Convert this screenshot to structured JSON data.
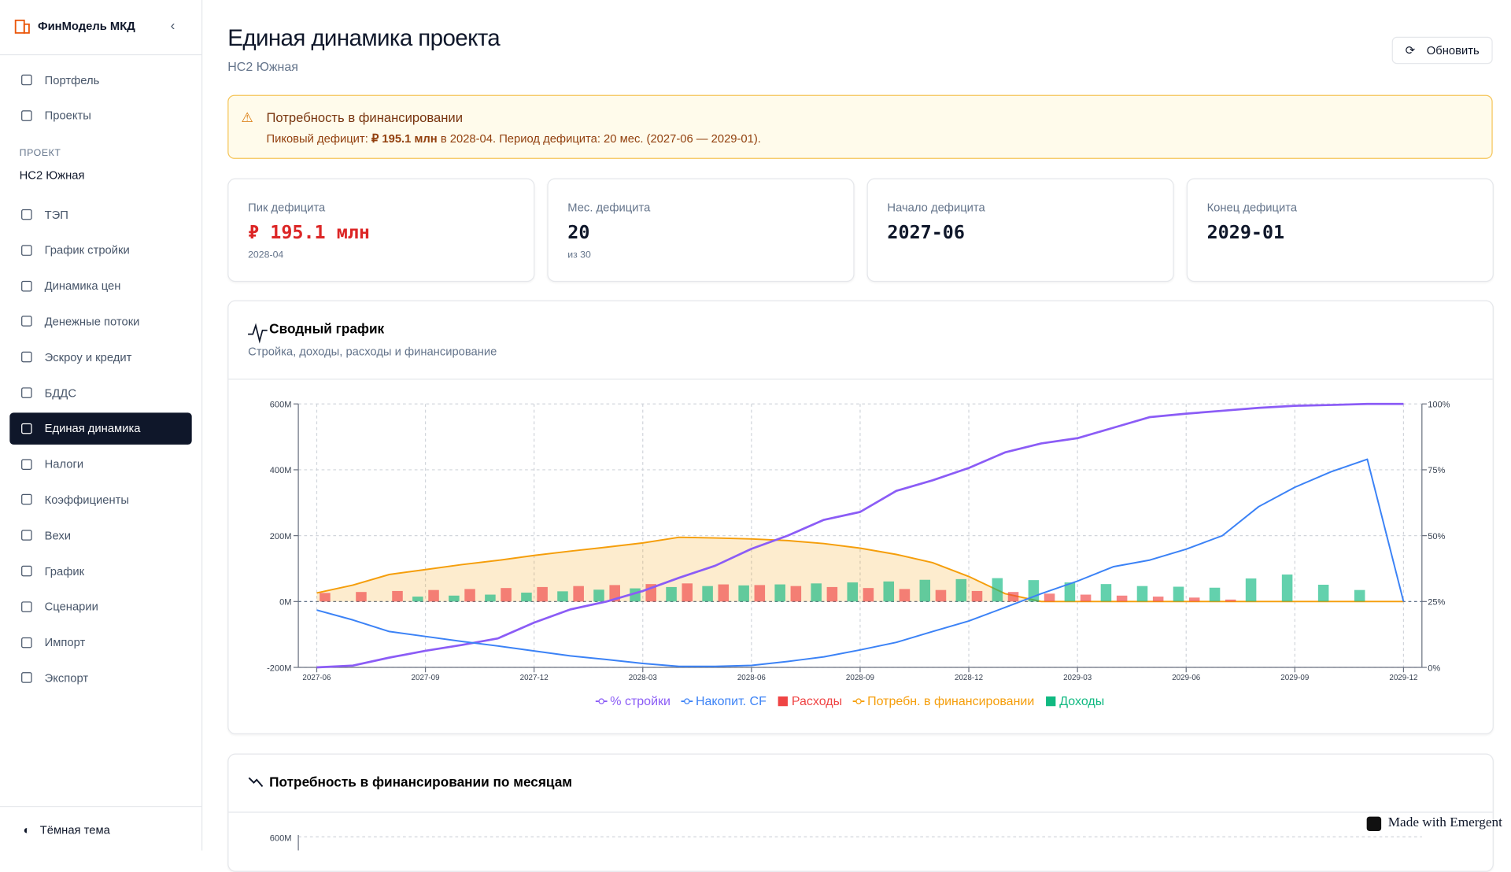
{
  "sidebar": {
    "brand": "ФинМодель МКД",
    "nav_top": [
      "Портфель",
      "Проекты"
    ],
    "section_label": "ПРОЕКТ",
    "project": "НС2 Южная",
    "nav": [
      "ТЭП",
      "График стройки",
      "Динамика цен",
      "Денежные потоки",
      "Эскроу и кредит",
      "БДДС",
      "Единая динамика",
      "Налоги",
      "Коэффициенты",
      "Вехи",
      "График",
      "Сценарии",
      "Импорт",
      "Экспорт"
    ],
    "active_index": 6,
    "theme_toggle": "Тёмная тема"
  },
  "header": {
    "title": "Единая динамика проекта",
    "subtitle": "НС2 Южная",
    "button": "Обновить"
  },
  "alert": {
    "title": "Потребность в финансировании",
    "prefix": "Пиковый дефицит: ",
    "peak": "₽ 195.1 млн",
    "suffix": " в 2028-04. Период дефицита: 20 мес. (2027-06 — 2029-01)."
  },
  "stats": [
    {
      "label": "Пик дефицита",
      "value": "₽ 195.1 млн",
      "sub": "2028-04",
      "accent": true
    },
    {
      "label": "Мес. дефицита",
      "value": 20,
      "sub": "из 30"
    },
    {
      "label": "Начало дефицита",
      "value": "2027-06"
    },
    {
      "label": "Конец дефицита",
      "value": "2029-01"
    }
  ],
  "chart_data": [
    {
      "type": "combo",
      "title": "Сводный график",
      "subtitle": "Стройка, доходы, расходы и финансирование",
      "categories": [
        "2027-06",
        null,
        null,
        "2027-09",
        null,
        null,
        "2027-12",
        null,
        null,
        "2028-03",
        null,
        null,
        "2028-06",
        null,
        null,
        "2028-09",
        null,
        null,
        "2028-12",
        null,
        null,
        "2029-03",
        null,
        null,
        "2029-06",
        null,
        null,
        "2029-09",
        null,
        null,
        "2029-12"
      ],
      "ylim": [
        -200,
        600
      ],
      "yticks": [
        {
          "value": -200,
          "label": "-200M"
        },
        {
          "value": 0,
          "label": "0M"
        },
        {
          "value": 200,
          "label": "200M"
        },
        {
          "value": 400,
          "label": "400M"
        },
        {
          "value": 600,
          "label": "600M"
        }
      ],
      "y2lim": [
        0,
        100
      ],
      "y2ticks": [
        {
          "value": 0,
          "label": "0%"
        },
        {
          "value": 25,
          "label": "25%"
        },
        {
          "value": 50,
          "label": "50%"
        },
        {
          "value": 75,
          "label": "75%"
        },
        {
          "value": 100,
          "label": "100%"
        }
      ],
      "grid": true,
      "series": [
        {
          "name": "% стройки",
          "kind": "line",
          "axis": "y2",
          "color": "#8b5cf6",
          "values": [
            0,
            0.7,
            3.7,
            6.3,
            8.5,
            11,
            17,
            22,
            25,
            29,
            34,
            38.6,
            45,
            50,
            56,
            59,
            67,
            71,
            75.7,
            81.6,
            85,
            87,
            91,
            95,
            96.3,
            97.4,
            98.5,
            99.3,
            99.6,
            100,
            100
          ]
        },
        {
          "name": "Накопит. CF",
          "kind": "line",
          "color": "#3b82f6",
          "values": [
            -26,
            -56,
            -91,
            -106,
            -121,
            -135,
            -150,
            -165,
            -176,
            -188,
            -197,
            -197,
            -194,
            -182,
            -168,
            -147,
            -124,
            -91,
            -59,
            -18,
            24,
            62,
            106,
            126,
            159,
            200,
            288,
            347,
            394,
            432,
            0
          ]
        },
        {
          "name": "Расходы",
          "kind": "bar",
          "color": "#ef4444",
          "values": [
            26,
            29,
            32,
            35,
            38,
            41,
            44,
            47,
            50,
            53,
            55,
            52,
            50,
            47,
            44,
            41,
            38,
            35,
            32,
            29,
            24,
            21,
            18,
            15,
            12,
            6,
            0,
            0,
            0,
            0,
            0
          ]
        },
        {
          "name": "Потребн. в финансировании",
          "kind": "area",
          "color": "#f59e0b",
          "values": [
            26,
            50,
            82,
            97,
            112,
            125,
            140,
            153,
            165,
            178,
            195.1,
            193,
            190,
            185,
            176,
            162,
            143,
            118,
            76,
            24,
            0,
            0,
            0,
            0,
            0,
            0,
            0,
            0,
            0,
            0,
            0
          ]
        },
        {
          "name": "Доходы",
          "kind": "bar",
          "color": "#10b981",
          "values": [
            0,
            0,
            15,
            18,
            21,
            27,
            31,
            36,
            40,
            44,
            47,
            49,
            52,
            55,
            58,
            61,
            66,
            68,
            71,
            65,
            58,
            53,
            47,
            45,
            42,
            70,
            82,
            51,
            35,
            0,
            0
          ]
        }
      ]
    },
    {
      "type": "bar",
      "title": "Потребность в финансировании по месяцам",
      "yticks": [
        {
          "value": 600,
          "label": "600M"
        }
      ]
    }
  ],
  "watermark": "Made with Emergent"
}
